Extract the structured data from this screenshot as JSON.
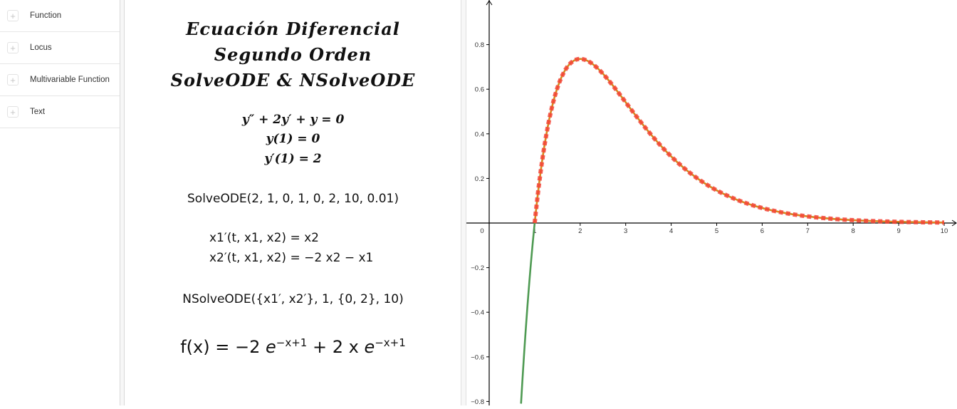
{
  "sidebar": {
    "items": [
      {
        "label": "Function",
        "icon": "plus-icon"
      },
      {
        "label": "Locus",
        "icon": "plus-icon"
      },
      {
        "label": "Multivariable Function",
        "icon": "plus-icon"
      },
      {
        "label": "Text",
        "icon": "plus-icon"
      }
    ]
  },
  "textpanel": {
    "title_lines": [
      "Ecuación Diferencial",
      "Segundo Orden",
      "SolveODE & NSolveODE"
    ],
    "equations": [
      "y″ + 2y′ + y = 0",
      "y(1) = 0",
      "y′(1) = 2"
    ],
    "solveode": "SolveODE(2, 1, 0, 1, 0, 2, 10, 0.01)",
    "system": [
      "x1′(t, x1, x2)  =  x2",
      "x2′(t, x1, x2)  =  −2 x2 − x1"
    ],
    "nsolveode": "NSolveODE({x1′, x2′}, 1, {0, 2}, 10)",
    "fx": {
      "lhs": "f(x)  =  −2 ",
      "e1": "e",
      "exp1": "−x+1",
      "mid": " + 2 x ",
      "e2": "e",
      "exp2": "−x+1"
    }
  },
  "colors": {
    "function_curve": "#4e9a52",
    "solveode_curve": "#e8841a",
    "nsolveode_points": "#f44336",
    "axis": "#000000"
  },
  "chart_data": {
    "type": "line",
    "title": "",
    "xlabel": "",
    "ylabel": "",
    "xlim": [
      -0.5,
      10.2
    ],
    "ylim": [
      -0.81,
      1.0
    ],
    "x_ticks": [
      0,
      1,
      2,
      3,
      4,
      5,
      6,
      7,
      8,
      9,
      10
    ],
    "y_ticks": [
      -0.8,
      -0.6,
      -0.4,
      -0.2,
      0.2,
      0.4,
      0.6,
      0.8
    ],
    "grid": false,
    "series": [
      {
        "name": "f(x) = -2e^(-x+1) + 2x e^(-x+1)",
        "style": "solid",
        "color": "#4e9a52",
        "x": [
          0.7,
          0.8,
          0.9,
          1.0,
          1.25,
          1.5,
          1.75,
          2.0,
          2.5,
          3.0,
          3.5,
          4.0,
          5.0,
          6.0,
          7.0,
          8.0,
          9.0,
          10.0
        ],
        "values": [
          -0.81,
          -0.489,
          -0.221,
          0.0,
          0.389,
          0.607,
          0.709,
          0.736,
          0.669,
          0.541,
          0.41,
          0.299,
          0.147,
          0.067,
          0.03,
          0.013,
          0.005,
          0.002
        ]
      },
      {
        "name": "SolveODE",
        "style": "solid",
        "color": "#e8841a",
        "x": [
          1.0,
          1.25,
          1.5,
          1.75,
          2.0,
          2.5,
          3.0,
          3.5,
          4.0,
          5.0,
          6.0,
          7.0,
          8.0,
          9.0,
          10.0
        ],
        "values": [
          0.0,
          0.389,
          0.607,
          0.709,
          0.736,
          0.669,
          0.541,
          0.41,
          0.299,
          0.147,
          0.067,
          0.03,
          0.013,
          0.005,
          0.002
        ]
      },
      {
        "name": "NSolveODE",
        "style": "dotted",
        "color": "#f44336",
        "x": [
          1.0,
          1.25,
          1.5,
          1.75,
          2.0,
          2.5,
          3.0,
          3.5,
          4.0,
          5.0,
          6.0,
          7.0,
          8.0,
          9.0,
          10.0
        ],
        "values": [
          0.0,
          0.389,
          0.607,
          0.709,
          0.736,
          0.669,
          0.541,
          0.41,
          0.299,
          0.147,
          0.067,
          0.03,
          0.013,
          0.005,
          0.002
        ]
      }
    ]
  }
}
